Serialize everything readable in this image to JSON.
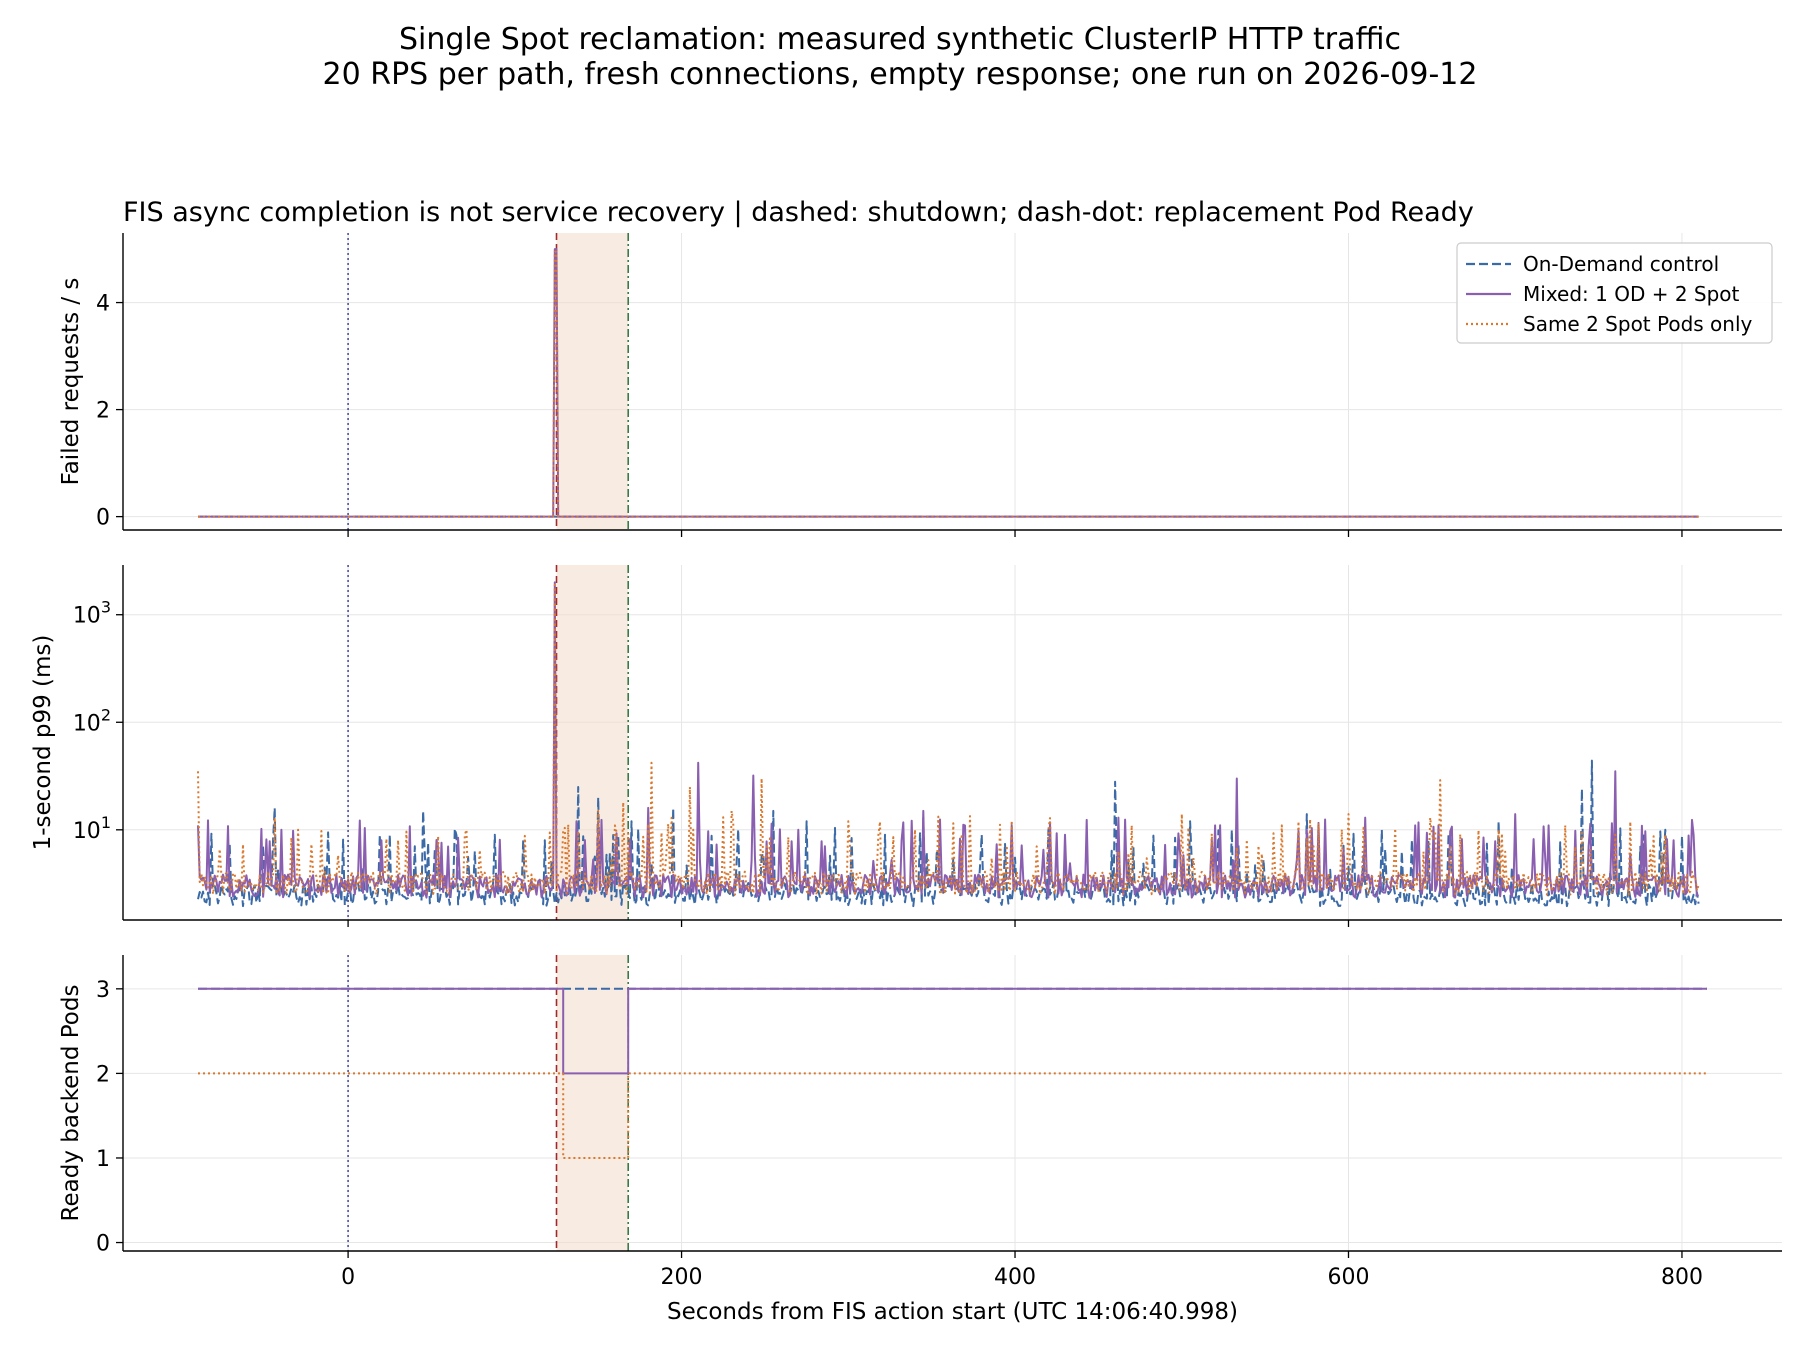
{
  "figure": {
    "title_line1": "Single Spot reclamation: measured synthetic ClusterIP HTTP traffic",
    "title_line2": "20 RPS per path, fresh connections, empty response; one run on 2026-09-12"
  },
  "colors": {
    "ondemand": "#3b6aa6",
    "mixed": "#8a5fb0",
    "spot": "#d9782f",
    "fis_start_line": "#4b4f9c",
    "shutdown_line": "#a3282c",
    "ready_line": "#3c7a45",
    "shade": "#f3dccb"
  },
  "chart_data": [
    {
      "type": "line",
      "title": "FIS async completion is not service recovery | dashed: shutdown; dash-dot: replacement Pod Ready",
      "xlabel": "",
      "ylabel": "Failed requests / s",
      "xlim": [
        -135,
        860
      ],
      "ylim": [
        -0.25,
        5.3
      ],
      "yticks": [
        "0",
        "2",
        "4"
      ],
      "ytick_values": [
        0,
        2,
        4
      ],
      "grid": true,
      "legend": {
        "position": "top-right",
        "entries": [
          "On-Demand control",
          "Mixed: 1 OD + 2 Spot",
          "Same 2 Spot Pods only"
        ]
      },
      "markers": {
        "fis_start": 0,
        "shutdown": 125,
        "replacement_ready": 168,
        "shaded_region": [
          125,
          168
        ]
      },
      "series": [
        {
          "name": "On-Demand control",
          "style": "dashed",
          "x": [
            -90,
            810
          ],
          "y": [
            0,
            0
          ]
        },
        {
          "name": "Mixed: 1 OD + 2 Spot",
          "style": "solid",
          "x": [
            -90,
            123,
            124,
            125,
            126,
            810
          ],
          "y": [
            0,
            0,
            5,
            5,
            0,
            0
          ]
        },
        {
          "name": "Same 2 Spot Pods only",
          "style": "dotted",
          "x": [
            -90,
            123,
            124,
            125,
            126,
            810
          ],
          "y": [
            0,
            0,
            4.95,
            4.95,
            0,
            0
          ]
        }
      ]
    },
    {
      "type": "line",
      "title": "",
      "xlabel": "",
      "ylabel": "1-second p99 (ms)",
      "yscale": "log",
      "xlim": [
        -135,
        860
      ],
      "ylim": [
        1.45,
        2900
      ],
      "yticks": [
        "10",
        "10",
        "10"
      ],
      "ytick_exponents": [
        "1",
        "2",
        "3"
      ],
      "ytick_values": [
        10,
        100,
        1000
      ],
      "grid": true,
      "markers": {
        "fis_start": 0,
        "shutdown": 125,
        "replacement_ready": 168,
        "shaded_region": [
          125,
          168
        ]
      },
      "series": [
        {
          "name": "On-Demand control",
          "style": "dashed",
          "baseline_ms": 2.5,
          "x_range": [
            -90,
            810
          ],
          "spikes": [
            [
              -44,
              16
            ],
            [
              25,
              9
            ],
            [
              45,
              15
            ],
            [
              88,
              9
            ],
            [
              118,
              8
            ],
            [
              138,
              25
            ],
            [
              150,
              20
            ],
            [
              170,
              12
            ],
            [
              195,
              16
            ],
            [
              255,
              15
            ],
            [
              275,
              12
            ],
            [
              345,
              13
            ],
            [
              380,
              9
            ],
            [
              420,
              10
            ],
            [
              460,
              28
            ],
            [
              505,
              12
            ],
            [
              530,
              10
            ],
            [
              575,
              14
            ],
            [
              620,
              10
            ],
            [
              660,
              9
            ],
            [
              690,
              12
            ],
            [
              740,
              24
            ],
            [
              746,
              44
            ],
            [
              790,
              10
            ]
          ]
        },
        {
          "name": "Mixed: 1 OD + 2 Spot",
          "style": "solid",
          "baseline_ms": 3.0,
          "x_range": [
            -90,
            810
          ],
          "spikes": [
            [
              -90,
              11
            ],
            [
              -40,
              10
            ],
            [
              20,
              8
            ],
            [
              60,
              7
            ],
            [
              124,
              2000
            ],
            [
              150,
              12
            ],
            [
              180,
              16
            ],
            [
              210,
              42
            ],
            [
              243,
              32
            ],
            [
              270,
              10
            ],
            [
              345,
              15
            ],
            [
              370,
              11
            ],
            [
              398,
              11
            ],
            [
              430,
              9
            ],
            [
              462,
              13
            ],
            [
              520,
              11
            ],
            [
              533,
              30
            ],
            [
              575,
              10
            ],
            [
              610,
              13
            ],
            [
              640,
              11
            ],
            [
              700,
              14
            ],
            [
              720,
              11
            ],
            [
              760,
              35
            ],
            [
              795,
              8
            ]
          ]
        },
        {
          "name": "Same 2 Spot Pods only",
          "style": "dotted",
          "baseline_ms": 3.2,
          "x_range": [
            -90,
            810
          ],
          "spikes": [
            [
              -90,
              35
            ],
            [
              -30,
              10
            ],
            [
              30,
              8
            ],
            [
              70,
              9
            ],
            [
              124,
              1900
            ],
            [
              150,
              15
            ],
            [
              165,
              18
            ],
            [
              182,
              42
            ],
            [
              205,
              25
            ],
            [
              230,
              15
            ],
            [
              248,
              30
            ],
            [
              300,
              12
            ],
            [
              340,
              10
            ],
            [
              420,
              10
            ],
            [
              470,
              11
            ],
            [
              500,
              14
            ],
            [
              560,
              11
            ],
            [
              600,
              14
            ],
            [
              655,
              29
            ],
            [
              690,
              10
            ],
            [
              730,
              11
            ],
            [
              760,
              9
            ],
            [
              790,
              9
            ]
          ]
        }
      ]
    },
    {
      "type": "line",
      "title": "",
      "xlabel": "Seconds from FIS action start (UTC 14:06:40.998)",
      "ylabel": "Ready backend Pods",
      "xlim": [
        -135,
        860
      ],
      "ylim": [
        -0.1,
        3.4
      ],
      "yticks": [
        "0",
        "1",
        "2",
        "3"
      ],
      "ytick_values": [
        0,
        1,
        2,
        3
      ],
      "xticks": [
        "0",
        "200",
        "400",
        "600",
        "800"
      ],
      "xtick_values": [
        0,
        200,
        400,
        600,
        800
      ],
      "grid": true,
      "markers": {
        "fis_start": 0,
        "shutdown": 125,
        "replacement_ready": 168,
        "shaded_region": [
          125,
          168
        ]
      },
      "series": [
        {
          "name": "On-Demand control",
          "style": "dashed",
          "x": [
            -90,
            815
          ],
          "y": [
            3,
            3
          ]
        },
        {
          "name": "Mixed: 1 OD + 2 Spot",
          "style": "solid",
          "x": [
            -90,
            129,
            129,
            168,
            168,
            815
          ],
          "y": [
            3,
            3,
            2,
            2,
            3,
            3
          ]
        },
        {
          "name": "Same 2 Spot Pods only",
          "style": "dotted",
          "x": [
            -90,
            129,
            129,
            168,
            168,
            815
          ],
          "y": [
            2,
            2,
            1,
            1,
            2,
            2
          ]
        }
      ]
    }
  ]
}
